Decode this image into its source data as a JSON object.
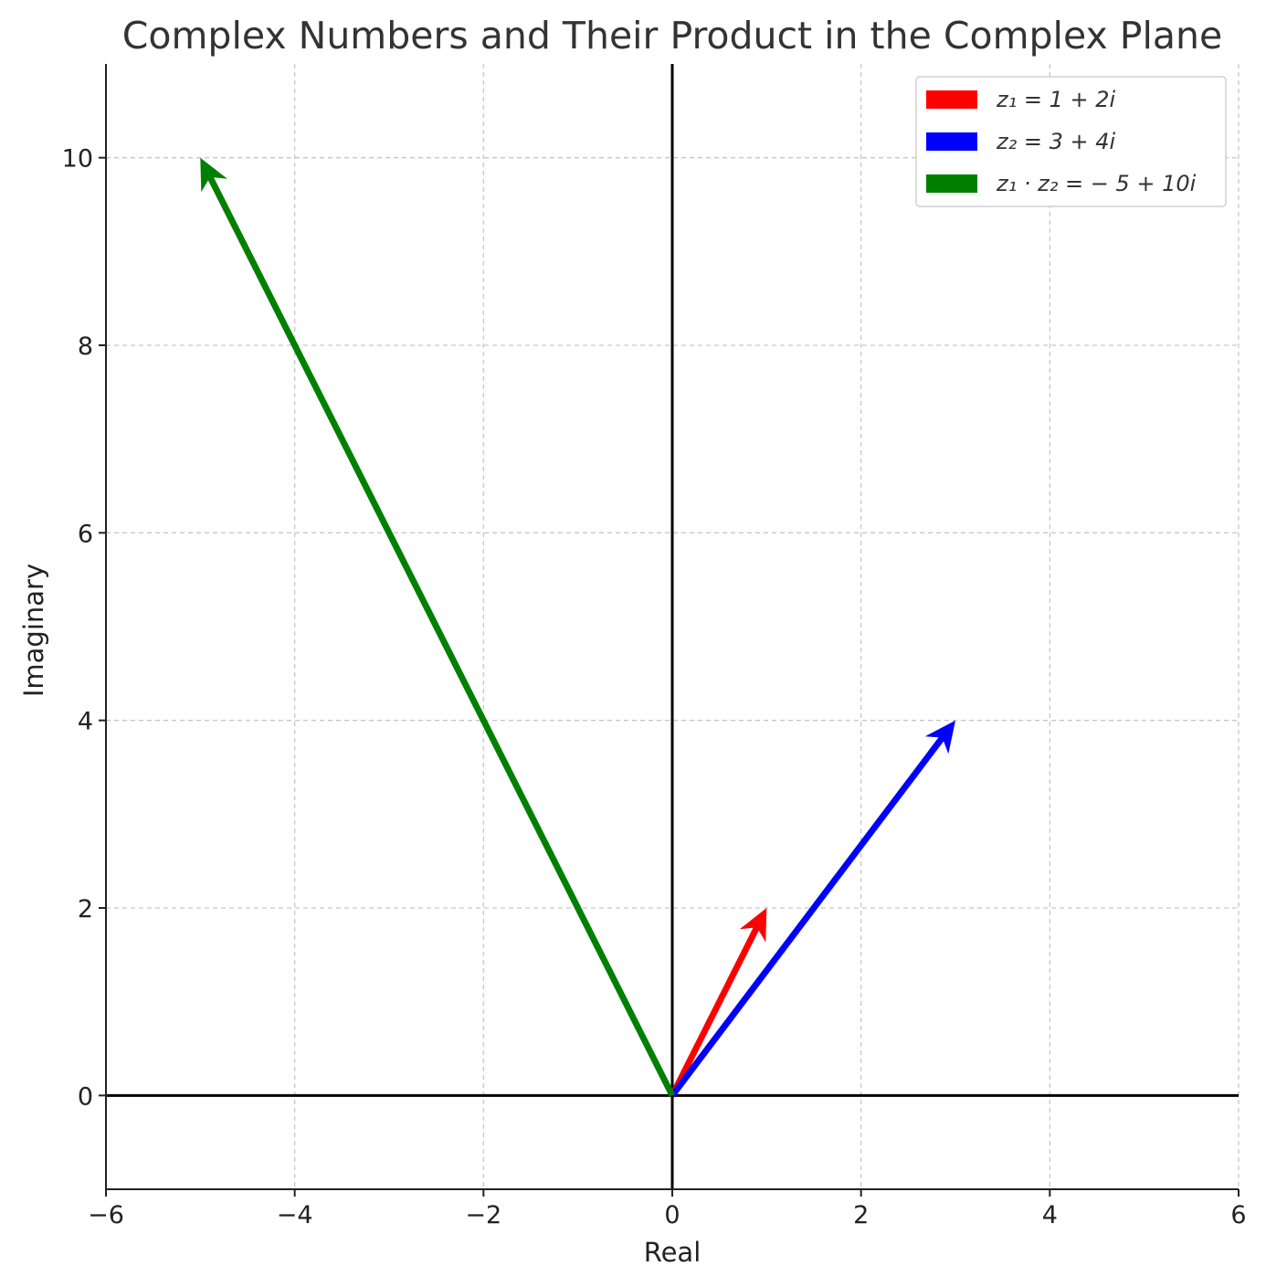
{
  "chart_data": {
    "type": "vector",
    "title": "Complex Numbers and Their Product in the Complex Plane",
    "xlabel": "Real",
    "ylabel": "Imaginary",
    "xlim": [
      -6,
      6
    ],
    "ylim": [
      -1,
      11
    ],
    "xticks": [
      -6,
      -4,
      -2,
      0,
      2,
      4,
      6
    ],
    "xtick_labels": [
      "−6",
      "−4",
      "−2",
      "0",
      "2",
      "4",
      "6"
    ],
    "yticks": [
      0,
      2,
      4,
      6,
      8,
      10
    ],
    "ytick_labels": [
      "0",
      "2",
      "4",
      "6",
      "8",
      "10"
    ],
    "grid": true,
    "legend_position": "top-right",
    "series": [
      {
        "name": "z₁ = 1 + 2i",
        "color": "#ff0000",
        "x0": 0,
        "y0": 0,
        "x": 1,
        "y": 2
      },
      {
        "name": "z₂ = 3 + 4i",
        "color": "#0000ff",
        "x0": 0,
        "y0": 0,
        "x": 3,
        "y": 4
      },
      {
        "name": "z₁ · z₂ = − 5 + 10i",
        "color": "#008000",
        "x0": 0,
        "y0": 0,
        "x": -5,
        "y": 10
      }
    ]
  }
}
